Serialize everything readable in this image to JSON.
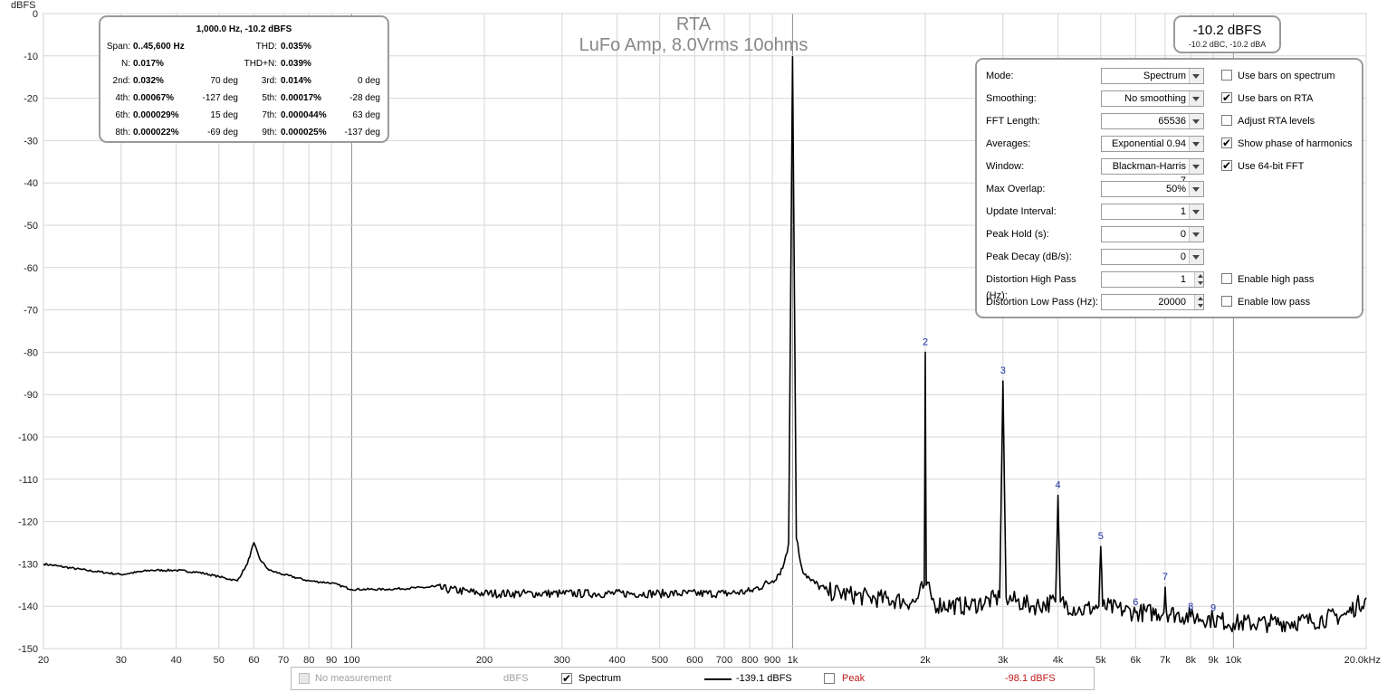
{
  "chart_data": {
    "type": "line",
    "title": "RTA",
    "subtitle": "LuFo Amp, 8.0Vrms 10ohms",
    "ylabel": "dBFS",
    "xscale": "log",
    "xlim": [
      20,
      20000
    ],
    "ylim": [
      -150,
      0
    ],
    "x_tick_labels": [
      "20",
      "30",
      "40",
      "50",
      "60",
      "70",
      "80",
      "90",
      "100",
      "200",
      "300",
      "400",
      "500",
      "600",
      "700",
      "800",
      "900",
      "1k",
      "2k",
      "3k",
      "4k",
      "5k",
      "6k",
      "7k",
      "8k",
      "9k",
      "10k",
      "20.0kHz"
    ],
    "y_tick_labels": [
      "0",
      "-10",
      "-20",
      "-30",
      "-40",
      "-50",
      "-60",
      "-70",
      "-80",
      "-90",
      "-100",
      "-110",
      "-120",
      "-130",
      "-140",
      "-150"
    ],
    "grid": true,
    "series": [
      {
        "name": "Spectrum",
        "x": [
          20,
          25,
          30,
          35,
          40,
          45,
          50,
          55,
          58,
          60,
          62,
          65,
          70,
          80,
          90,
          100,
          120,
          150,
          200,
          300,
          500,
          700,
          800,
          900,
          950,
          980,
          1000,
          1020,
          1050,
          1100,
          1200,
          1500,
          1900,
          1990,
          2000,
          2010,
          2100,
          2500,
          2950,
          3000,
          3050,
          3500,
          3950,
          4000,
          4050,
          4500,
          4950,
          5000,
          5050,
          6000,
          6950,
          7000,
          7050,
          8000,
          9000,
          10000,
          12000,
          15000,
          18000,
          20000
        ],
        "y": [
          -130,
          -131.5,
          -132.5,
          -131.5,
          -131.5,
          -132,
          -133,
          -134,
          -130,
          -125,
          -129,
          -131.5,
          -132.5,
          -134,
          -134.5,
          -136,
          -136,
          -135.5,
          -137,
          -137,
          -137,
          -137,
          -136.5,
          -134,
          -131,
          -125,
          -10.2,
          -124,
          -131,
          -134,
          -136.5,
          -138,
          -139,
          -135,
          -80,
          -135,
          -139.5,
          -140,
          -138,
          -86.8,
          -138,
          -140,
          -139,
          -113.8,
          -139,
          -141,
          -140,
          -125.9,
          -140,
          -141.5,
          -141.5,
          -135.5,
          -141.5,
          -142.5,
          -143,
          -144,
          -144,
          -143.5,
          -142,
          -138
        ]
      }
    ],
    "harmonic_markers": [
      {
        "label": "2",
        "x": 2000,
        "y": -80
      },
      {
        "label": "3",
        "x": 3000,
        "y": -86.8
      },
      {
        "label": "4",
        "x": 4000,
        "y": -113.8
      },
      {
        "label": "5",
        "x": 5000,
        "y": -125.9
      },
      {
        "label": "6",
        "x": 6000,
        "y": -141.5
      },
      {
        "label": "7",
        "x": 7000,
        "y": -135.5
      },
      {
        "label": "8",
        "x": 8000,
        "y": -142.5
      },
      {
        "label": "9",
        "x": 9000,
        "y": -142.8
      }
    ]
  },
  "stats": {
    "header": "1,000.0 Hz, -10.2 dBFS",
    "rows": [
      {
        "l1": "Span:",
        "v1": "0..45,600 Hz",
        "d1": "",
        "l2": "THD:",
        "v2": "0.035%",
        "d2": ""
      },
      {
        "l1": "N:",
        "v1": "0.017%",
        "d1": "",
        "l2": "THD+N:",
        "v2": "0.039%",
        "d2": ""
      },
      {
        "l1": "2nd:",
        "v1": "0.032%",
        "d1": "70 deg",
        "l2": "3rd:",
        "v2": "0.014%",
        "d2": "0 deg"
      },
      {
        "l1": "4th:",
        "v1": "0.00067%",
        "d1": "-127 deg",
        "l2": "5th:",
        "v2": "0.00017%",
        "d2": "-28 deg"
      },
      {
        "l1": "6th:",
        "v1": "0.000029%",
        "d1": "15 deg",
        "l2": "7th:",
        "v2": "0.000044%",
        "d2": "63 deg"
      },
      {
        "l1": "8th:",
        "v1": "0.000022%",
        "d1": "-69 deg",
        "l2": "9th:",
        "v2": "0.000025%",
        "d2": "-137 deg"
      }
    ]
  },
  "level": {
    "main": "-10.2 dBFS",
    "sub": "-10.2 dBC, -10.2 dBA"
  },
  "settings": {
    "rows": [
      {
        "label": "Mode:",
        "value": "Spectrum",
        "kind": "select"
      },
      {
        "label": "Smoothing:",
        "value": "No  smoothing",
        "kind": "select"
      },
      {
        "label": "FFT Length:",
        "value": "65536",
        "kind": "select"
      },
      {
        "label": "Averages:",
        "value": "Exponential 0.94",
        "kind": "select"
      },
      {
        "label": "Window:",
        "value": "Blackman-Harris 7",
        "kind": "select"
      },
      {
        "label": "Max Overlap:",
        "value": "50%",
        "kind": "select"
      },
      {
        "label": "Update Interval:",
        "value": "1",
        "kind": "select"
      },
      {
        "label": "Peak Hold (s):",
        "value": "0",
        "kind": "select"
      },
      {
        "label": "Peak Decay (dB/s):",
        "value": "0",
        "kind": "select"
      },
      {
        "label": "Distortion High Pass (Hz):",
        "value": "1",
        "kind": "spin"
      },
      {
        "label": "Distortion Low Pass (Hz):",
        "value": "20000",
        "kind": "spin"
      }
    ],
    "checks": [
      {
        "label": "Use bars on spectrum",
        "checked": false,
        "row": 0
      },
      {
        "label": "Use bars on RTA",
        "checked": true,
        "row": 1
      },
      {
        "label": "Adjust RTA levels",
        "checked": false,
        "row": 2
      },
      {
        "label": "Show phase of harmonics",
        "checked": true,
        "row": 3
      },
      {
        "label": "Use 64-bit FFT",
        "checked": true,
        "row": 4
      },
      {
        "label": "Enable high pass",
        "checked": false,
        "row": 9
      },
      {
        "label": "Enable low pass",
        "checked": false,
        "row": 10
      }
    ]
  },
  "legend": {
    "no_measurement": "No measurement",
    "unit": "dBFS",
    "spectrum_label": "Spectrum",
    "spectrum_value": "-139.1 dBFS",
    "peak_label": "Peak",
    "peak_value": "-98.1 dBFS",
    "spectrum_checked": true,
    "peak_checked": false,
    "peak_color": "#c01818"
  }
}
